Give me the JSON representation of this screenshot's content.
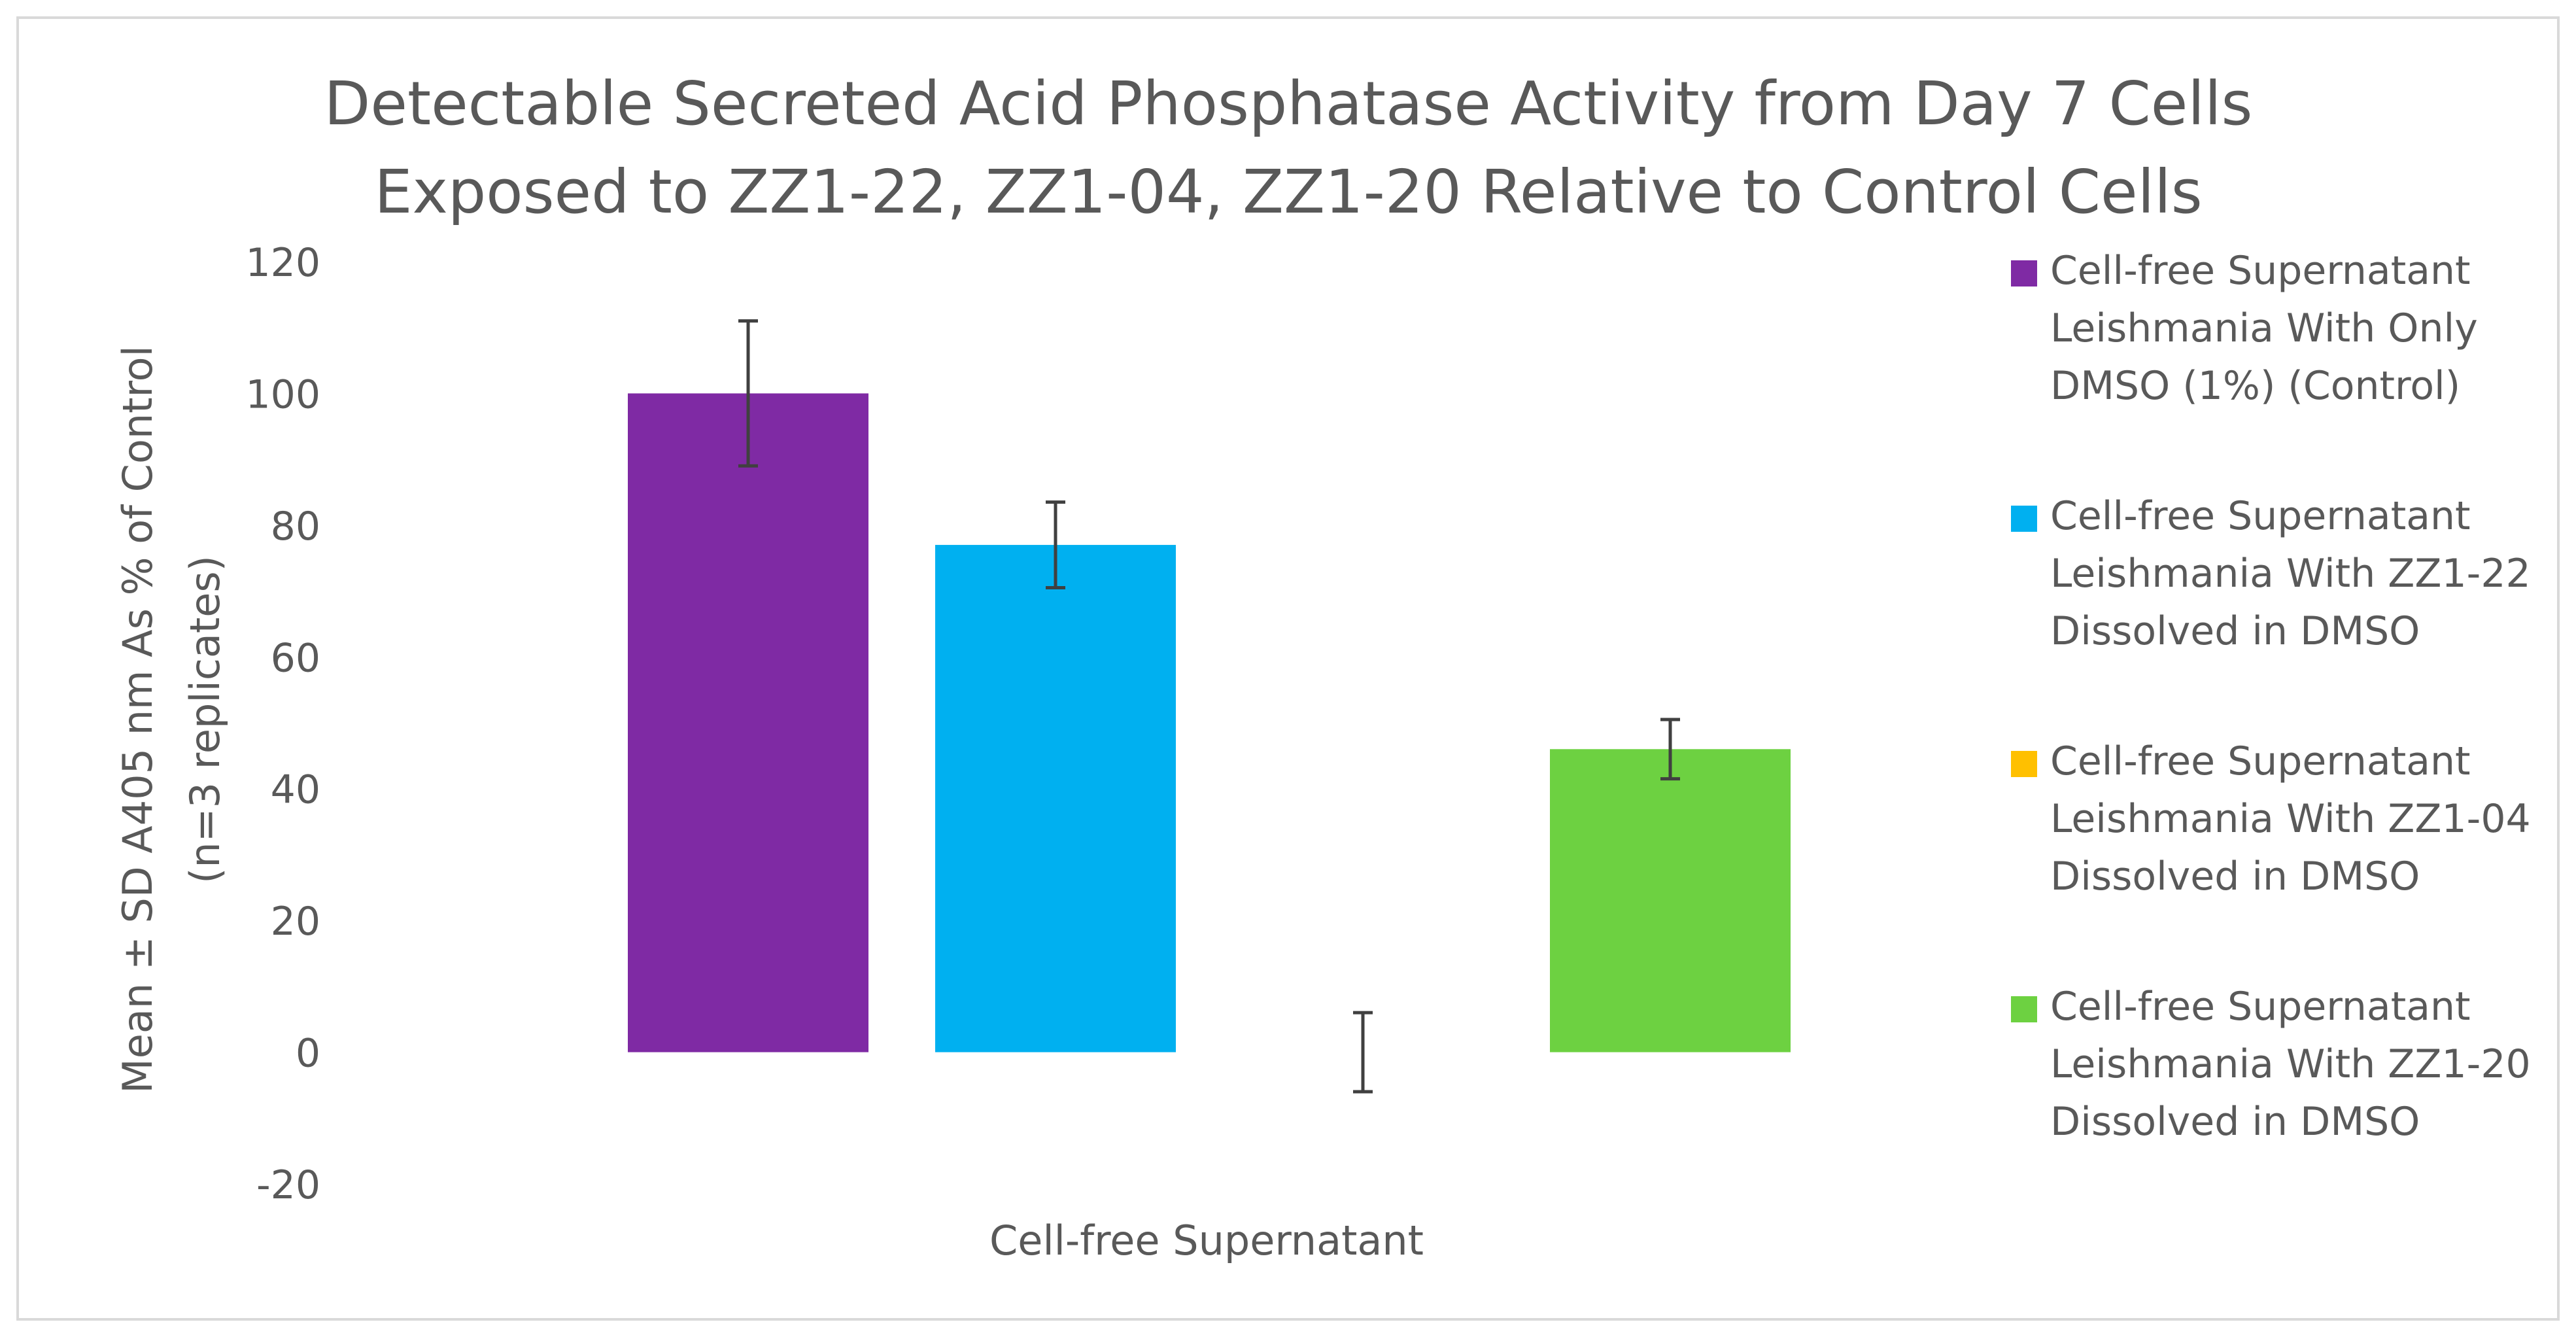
{
  "chart_data": {
    "type": "bar",
    "title": [
      "Detectable Secreted Acid Phosphatase Activity from Day 7 Cells",
      "Exposed to ZZ1-22, ZZ1-04, ZZ1-20 Relative to Control Cells"
    ],
    "xlabel": "Cell-free Supernatant",
    "ylabel": [
      "Mean ± SD A405 nm As % of Control",
      "(n=3 replicates)"
    ],
    "ylim": [
      -20,
      120
    ],
    "yticks": [
      -20,
      0,
      20,
      40,
      60,
      80,
      100,
      120
    ],
    "categories": [
      "Cell-free Supernatant"
    ],
    "series": [
      {
        "name": "Cell-free Supernatant Leishmania With Only DMSO (1%) (Control)",
        "values": [
          100
        ],
        "sd": [
          11
        ],
        "color": "#7f2aa4"
      },
      {
        "name": "Cell-free Supernatant Leishmania With ZZ1-22 Dissolved in DMSO",
        "values": [
          77
        ],
        "sd": [
          6.5
        ],
        "color": "#00b0f0"
      },
      {
        "name": "Cell-free Supernatant Leishmania With ZZ1-04 Dissolved in DMSO",
        "values": [
          0
        ],
        "sd": [
          6
        ],
        "color": "#ffc000"
      },
      {
        "name": "Cell-free Supernatant Leishmania With ZZ1-20 Dissolved in DMSO",
        "values": [
          46
        ],
        "sd": [
          4.5
        ],
        "color": "#6dd141"
      }
    ],
    "legend_position": "right",
    "grid": false
  }
}
